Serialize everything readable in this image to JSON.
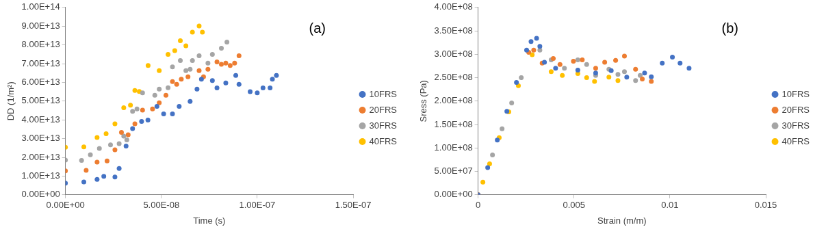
{
  "chart_data": [
    {
      "type": "scatter",
      "xlabel": "Time (s)",
      "ylabel": "DD (1/m²)",
      "annotations": [
        "(a)"
      ],
      "legend": "right",
      "marker": "circle",
      "grid": false,
      "xlim": [
        0,
        1.5e-07
      ],
      "xticks": [
        {
          "value": 0,
          "label": "0.00E+00"
        },
        {
          "value": 5e-08,
          "label": "5.00E-08"
        },
        {
          "value": 1e-07,
          "label": "1.00E-07"
        },
        {
          "value": 1.5e-07,
          "label": "1.50E-07"
        }
      ],
      "ylim": [
        0,
        100000000000000.0
      ],
      "yticks": [
        {
          "value": 0,
          "label": "0.00E+00"
        },
        {
          "value": 10000000000000.0,
          "label": "1.00E+13"
        },
        {
          "value": 20000000000000.0,
          "label": "2.00E+13"
        },
        {
          "value": 30000000000000.0,
          "label": "3.00E+13"
        },
        {
          "value": 40000000000000.0,
          "label": "4.00E+13"
        },
        {
          "value": 50000000000000.0,
          "label": "5.00E+13"
        },
        {
          "value": 60000000000000.0,
          "label": "6.00E+13"
        },
        {
          "value": 70000000000000.0,
          "label": "7.00E+13"
        },
        {
          "value": 80000000000000.0,
          "label": "8.00E+13"
        },
        {
          "value": 90000000000000.0,
          "label": "9.00E+13"
        },
        {
          "value": 100000000000000.0,
          "label": "1.00E+14"
        }
      ],
      "series": [
        {
          "name": "10FRS",
          "color": "#4472c4",
          "x": [
            0,
            9.6e-09,
            1.65e-08,
            2e-08,
            2.58e-08,
            2.8e-08,
            3.16e-08,
            3.5e-08,
            3.97e-08,
            4.3e-08,
            4.77e-08,
            5.12e-08,
            5.58e-08,
            5.93e-08,
            6.5e-08,
            6.86e-08,
            7.09e-08,
            7.66e-08,
            7.9e-08,
            8.36e-08,
            8.88e-08,
            9.05e-08,
            9.63e-08,
            1e-07,
            1.03e-07,
            1.067e-07,
            1.079e-07,
            1.1e-07
          ],
          "values": [
            6200000000000.0,
            6900000000000.0,
            8200000000000.0,
            9900000000000.0,
            9500000000000.0,
            14100000000000.0,
            26000000000000.0,
            35300000000000.0,
            39200000000000.0,
            39900000000000.0,
            47200000000000.0,
            43200000000000.0,
            43200000000000.0,
            47200000000000.0,
            49800000000000.0,
            56400000000000.0,
            61700000000000.0,
            61000000000000.0,
            57000000000000.0,
            59700000000000.0,
            63700000000000.0,
            59000000000000.0,
            55000000000000.0,
            54400000000000.0,
            57000000000000.0,
            57000000000000.0,
            61700000000000.0,
            63700000000000.0
          ]
        },
        {
          "name": "20FRS",
          "color": "#ed7d31",
          "x": [
            0,
            1.08e-08,
            1.65e-08,
            2.17e-08,
            2.58e-08,
            2.92e-08,
            3.27e-08,
            3.62e-08,
            4.02e-08,
            4.54e-08,
            4.89e-08,
            5.24e-08,
            5.58e-08,
            5.8e-08,
            6.04e-08,
            6.39e-08,
            6.97e-08,
            7.2e-08,
            7.43e-08,
            7.9e-08,
            8.13e-08,
            8.36e-08,
            8.59e-08,
            8.82e-08,
            9.05e-08
          ],
          "values": [
            12800000000000.0,
            13100000000000.0,
            17400000000000.0,
            18100000000000.0,
            24000000000000.0,
            33300000000000.0,
            32000000000000.0,
            37900000000000.0,
            45200000000000.0,
            45800000000000.0,
            49100000000000.0,
            53100000000000.0,
            60400000000000.0,
            59000000000000.0,
            61700000000000.0,
            63000000000000.0,
            66300000000000.0,
            63000000000000.0,
            67000000000000.0,
            70900000000000.0,
            69600000000000.0,
            70300000000000.0,
            69000000000000.0,
            70300000000000.0,
            74200000000000.0
          ]
        },
        {
          "name": "30FRS",
          "color": "#a5a5a5",
          "x": [
            0,
            8.4e-09,
            1.3e-08,
            1.77e-08,
            2.35e-08,
            2.8e-08,
            3.04e-08,
            3.2e-08,
            3.5e-08,
            3.73e-08,
            4.02e-08,
            4.66e-08,
            4.89e-08,
            5.35e-08,
            5.58e-08,
            5.99e-08,
            6.28e-08,
            6.5e-08,
            6.62e-08,
            6.97e-08,
            7.43e-08,
            7.66e-08,
            8.13e-08,
            8.42e-08
          ],
          "values": [
            18500000000000.0,
            18400000000000.0,
            21400000000000.0,
            24700000000000.0,
            26700000000000.0,
            27300000000000.0,
            31300000000000.0,
            29300000000000.0,
            44500000000000.0,
            45800000000000.0,
            54400000000000.0,
            53100000000000.0,
            56400000000000.0,
            57100000000000.0,
            68300000000000.0,
            71600000000000.0,
            66300000000000.0,
            67000000000000.0,
            71600000000000.0,
            74200000000000.0,
            70300000000000.0,
            74900000000000.0,
            78200000000000.0,
            81500000000000.0
          ]
        },
        {
          "name": "40FRS",
          "color": "#ffc000",
          "x": [
            0,
            9.6e-09,
            1.65e-08,
            2.12e-08,
            2.58e-08,
            3.04e-08,
            3.39e-08,
            3.62e-08,
            3.85e-08,
            4.31e-08,
            4.89e-08,
            5.35e-08,
            5.7e-08,
            5.99e-08,
            6.28e-08,
            6.62e-08,
            6.97e-08,
            7.14e-08
          ],
          "values": [
            25400000000000.0,
            25600000000000.0,
            30600000000000.0,
            32600000000000.0,
            37900000000000.0,
            46500000000000.0,
            47800000000000.0,
            55700000000000.0,
            55100000000000.0,
            69000000000000.0,
            66300000000000.0,
            74900000000000.0,
            76900000000000.0,
            82200000000000.0,
            79500000000000.0,
            86800000000000.0,
            90100000000000.0,
            86800000000000.0
          ]
        }
      ]
    },
    {
      "type": "scatter",
      "xlabel": "Strain (m/m)",
      "ylabel": "Sress (Pa)",
      "annotations": [
        "(b)"
      ],
      "legend": "right",
      "marker": "circle",
      "grid": false,
      "xlim": [
        0,
        0.015
      ],
      "xticks": [
        0,
        0.005,
        0.01,
        0.015
      ],
      "ylim": [
        0,
        400000000.0
      ],
      "yticks": [
        {
          "value": 0,
          "label": "0.00E+00"
        },
        {
          "value": 50000000.0,
          "label": "5.00E+07"
        },
        {
          "value": 100000000.0,
          "label": "1.00E+08"
        },
        {
          "value": 150000000.0,
          "label": "1.50E+08"
        },
        {
          "value": 200000000.0,
          "label": "2.00E+08"
        },
        {
          "value": 250000000.0,
          "label": "2.50E+08"
        },
        {
          "value": 300000000.0,
          "label": "3.00E+08"
        },
        {
          "value": 350000000.0,
          "label": "3.50E+08"
        },
        {
          "value": 400000000.0,
          "label": "4.00E+08"
        }
      ],
      "series": [
        {
          "name": "10FRS",
          "color": "#4472c4",
          "x": [
            0,
            0.0005,
            0.001,
            0.0015,
            0.002,
            0.00253,
            0.00276,
            0.00305,
            0.00322,
            0.00346,
            0.00404,
            0.0052,
            0.00613,
            0.00694,
            0.00775,
            0.00868,
            0.00903,
            0.0096,
            0.01013,
            0.01053,
            0.011
          ],
          "values": [
            0,
            58000000.0,
            117000000.0,
            178000000.0,
            240000000.0,
            309000000.0,
            327000000.0,
            334000000.0,
            317000000.0,
            283000000.0,
            270000000.0,
            266000000.0,
            260000000.0,
            265000000.0,
            251000000.0,
            260000000.0,
            252000000.0,
            281000000.0,
            294000000.0,
            281000000.0,
            270000000.0
          ]
        },
        {
          "name": "20FRS",
          "color": "#ed7d31",
          "x": [
            0,
            0.00264,
            0.0029,
            0.00334,
            0.00392,
            0.00427,
            0.00497,
            0.00543,
            0.00613,
            0.0066,
            0.00717,
            0.00763,
            0.00821,
            0.00856,
            0.00903
          ],
          "values": [
            0,
            304000000.0,
            309000000.0,
            281000000.0,
            291000000.0,
            278000000.0,
            285000000.0,
            288000000.0,
            270000000.0,
            283000000.0,
            287000000.0,
            296000000.0,
            268000000.0,
            247000000.0,
            242000000.0
          ]
        },
        {
          "name": "30FRS",
          "color": "#a5a5a5",
          "x": [
            0,
            0.00075,
            0.00125,
            0.00175,
            0.00225,
            0.00322,
            0.00381,
            0.0045,
            0.0052,
            0.00566,
            0.00613,
            0.00682,
            0.00729,
            0.00763,
            0.00821,
            0.00845
          ],
          "values": [
            0,
            85000000.0,
            141000000.0,
            196000000.0,
            250000000.0,
            309000000.0,
            288000000.0,
            270000000.0,
            288000000.0,
            278000000.0,
            255000000.0,
            268000000.0,
            257000000.0,
            263000000.0,
            244000000.0,
            255000000.0
          ]
        },
        {
          "name": "40FRS",
          "color": "#ffc000",
          "x": [
            0,
            0.00025,
            0.0006,
            0.0011,
            0.0016,
            0.0021,
            0.00282,
            0.00381,
            0.00439,
            0.0052,
            0.00566,
            0.00607,
            0.00682,
            0.00729
          ],
          "values": [
            0,
            27000000.0,
            66000000.0,
            122000000.0,
            177000000.0,
            233000000.0,
            299000000.0,
            263000000.0,
            255000000.0,
            259000000.0,
            250000000.0,
            242000000.0,
            251000000.0,
            244000000.0
          ]
        }
      ]
    }
  ]
}
